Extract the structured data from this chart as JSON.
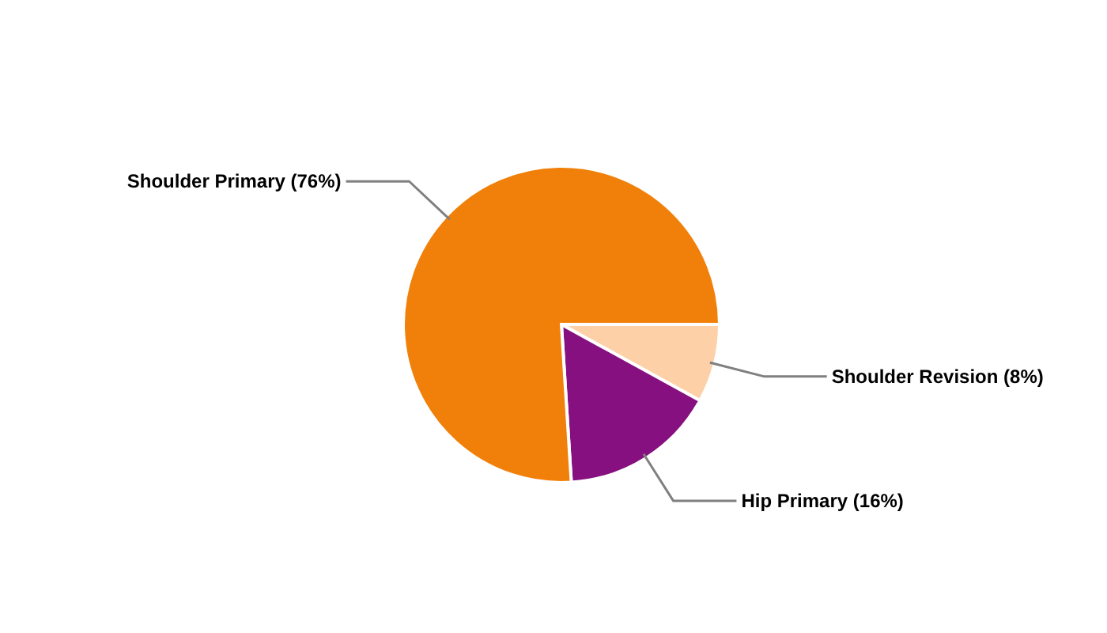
{
  "chart_data": {
    "type": "pie",
    "categories": [
      "Shoulder Revision (8%)",
      "Hip Primary (16%)",
      "Shoulder Primary (76%)"
    ],
    "values": [
      8,
      16,
      76
    ],
    "colors": [
      "#fdd0a8",
      "#861080",
      "#f0800a"
    ]
  }
}
